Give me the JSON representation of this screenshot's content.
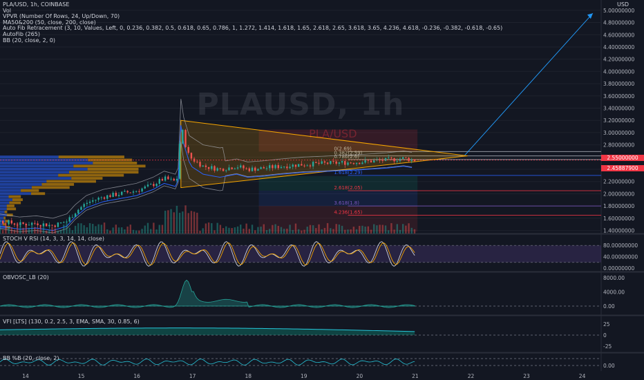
{
  "header": {
    "symbol_line": "PLA/USD, 1h, COINBASE",
    "indicators": [
      "Vol",
      "VPVR (Number Of Rows, 24, Up/Down, 70)",
      "MA50&200 (50, close, 200, close)",
      "Auto Fib Retracement (3, 10, Values, Left, 0, 0.236, 0.382, 0.5, 0.618, 0.65, 0.786, 1, 1.272, 1.414, 1.618, 1.65, 2.618, 2.65, 3.618, 3.65, 4.236, 4.618, -0.236, -0.382, -0.618, -0.65)",
      "AutoFib (265)",
      "BB (20, close, 2, 0)"
    ]
  },
  "watermark": "PLAUSD, 1h",
  "inner_watermark": "PLA/USD",
  "axis_unit": "USD",
  "price_tags": [
    {
      "text": "2.55000000",
      "color": "#f23645"
    },
    {
      "text": "2.45887900",
      "color": "#f23645"
    }
  ],
  "fib_labels": [
    {
      "text": "0(2.69)",
      "price": 2.69,
      "color": "#b2b5be"
    },
    {
      "text": "0.382(2.59)",
      "price": 2.62,
      "color": "#b2b5be"
    },
    {
      "text": "0.786(2.6)",
      "price": 2.56,
      "color": "#b2b5be"
    },
    {
      "text": "1.618(2.29)",
      "price": 2.3,
      "color": "#2962ff"
    },
    {
      "text": "2.618(2.05)",
      "price": 2.05,
      "color": "#f23645"
    },
    {
      "text": "3.618(1.8)",
      "price": 1.8,
      "color": "#7e57c2"
    },
    {
      "text": "4.236(1.65)",
      "price": 1.65,
      "color": "#f23645"
    }
  ],
  "panes": {
    "stoch": {
      "label": "STOCH V RSI (14, 3, 3, 14, 14, close)",
      "ticks": [
        "80.00000000",
        "40.00000000",
        "0.00000000"
      ]
    },
    "obv": {
      "label": "OBVOSC_LB (20)",
      "ticks": [
        "8000.00",
        "4000.00",
        "0.00"
      ]
    },
    "vfi": {
      "label": "VFI [LTS] (130, 0.2, 2.5, 3, EMA, SMA, 30, 0.85, 6)",
      "ticks": [
        "25",
        "0",
        "-25"
      ]
    },
    "bb": {
      "label": "BB %B (20, close, 2)",
      "ticks": [
        "0.00"
      ]
    }
  },
  "chart_data": {
    "type": "candlestick",
    "symbol": "PLA/USD",
    "interval": "1h",
    "exchange": "COINBASE",
    "x_labels": [
      "14",
      "15",
      "16",
      "17",
      "18",
      "19",
      "20",
      "21",
      "22",
      "23",
      "24"
    ],
    "y_ticks": [
      "5.00000000",
      "4.80000000",
      "4.60000000",
      "4.40000000",
      "4.20000000",
      "4.00000000",
      "3.80000000",
      "3.60000000",
      "3.40000000",
      "3.20000000",
      "3.00000000",
      "2.80000000",
      "2.60000000",
      "2.40000000",
      "2.20000000",
      "2.00000000",
      "1.80000000",
      "1.60000000",
      "1.40000000"
    ],
    "ylim": [
      1.35,
      5.1
    ],
    "xlim_days": [
      13.55,
      24.35
    ],
    "price_path": [
      [
        13.55,
        1.55
      ],
      [
        13.9,
        1.5
      ],
      [
        14.2,
        1.52
      ],
      [
        14.5,
        1.48
      ],
      [
        14.75,
        1.55
      ],
      [
        14.9,
        1.7
      ],
      [
        15.1,
        1.85
      ],
      [
        15.4,
        1.95
      ],
      [
        15.7,
        2.0
      ],
      [
        16.0,
        2.05
      ],
      [
        16.3,
        2.15
      ],
      [
        16.5,
        2.25
      ],
      [
        16.7,
        2.2
      ],
      [
        16.75,
        2.3
      ],
      [
        16.8,
        3.2
      ],
      [
        16.85,
        2.9
      ],
      [
        16.95,
        2.6
      ],
      [
        17.2,
        2.45
      ],
      [
        17.5,
        2.4
      ],
      [
        17.8,
        2.45
      ],
      [
        18.0,
        2.4
      ],
      [
        18.3,
        2.42
      ],
      [
        18.6,
        2.45
      ],
      [
        19.0,
        2.48
      ],
      [
        19.5,
        2.5
      ],
      [
        20.0,
        2.52
      ],
      [
        20.5,
        2.55
      ],
      [
        20.8,
        2.58
      ],
      [
        21.0,
        2.55
      ]
    ],
    "triangle": {
      "apex": [
        21.95,
        2.62
      ],
      "upper_start": [
        16.8,
        3.2
      ],
      "lower_start": [
        16.8,
        2.1
      ]
    },
    "projection": [
      [
        21.9,
        2.63
      ],
      [
        24.2,
        4.95
      ]
    ]
  }
}
